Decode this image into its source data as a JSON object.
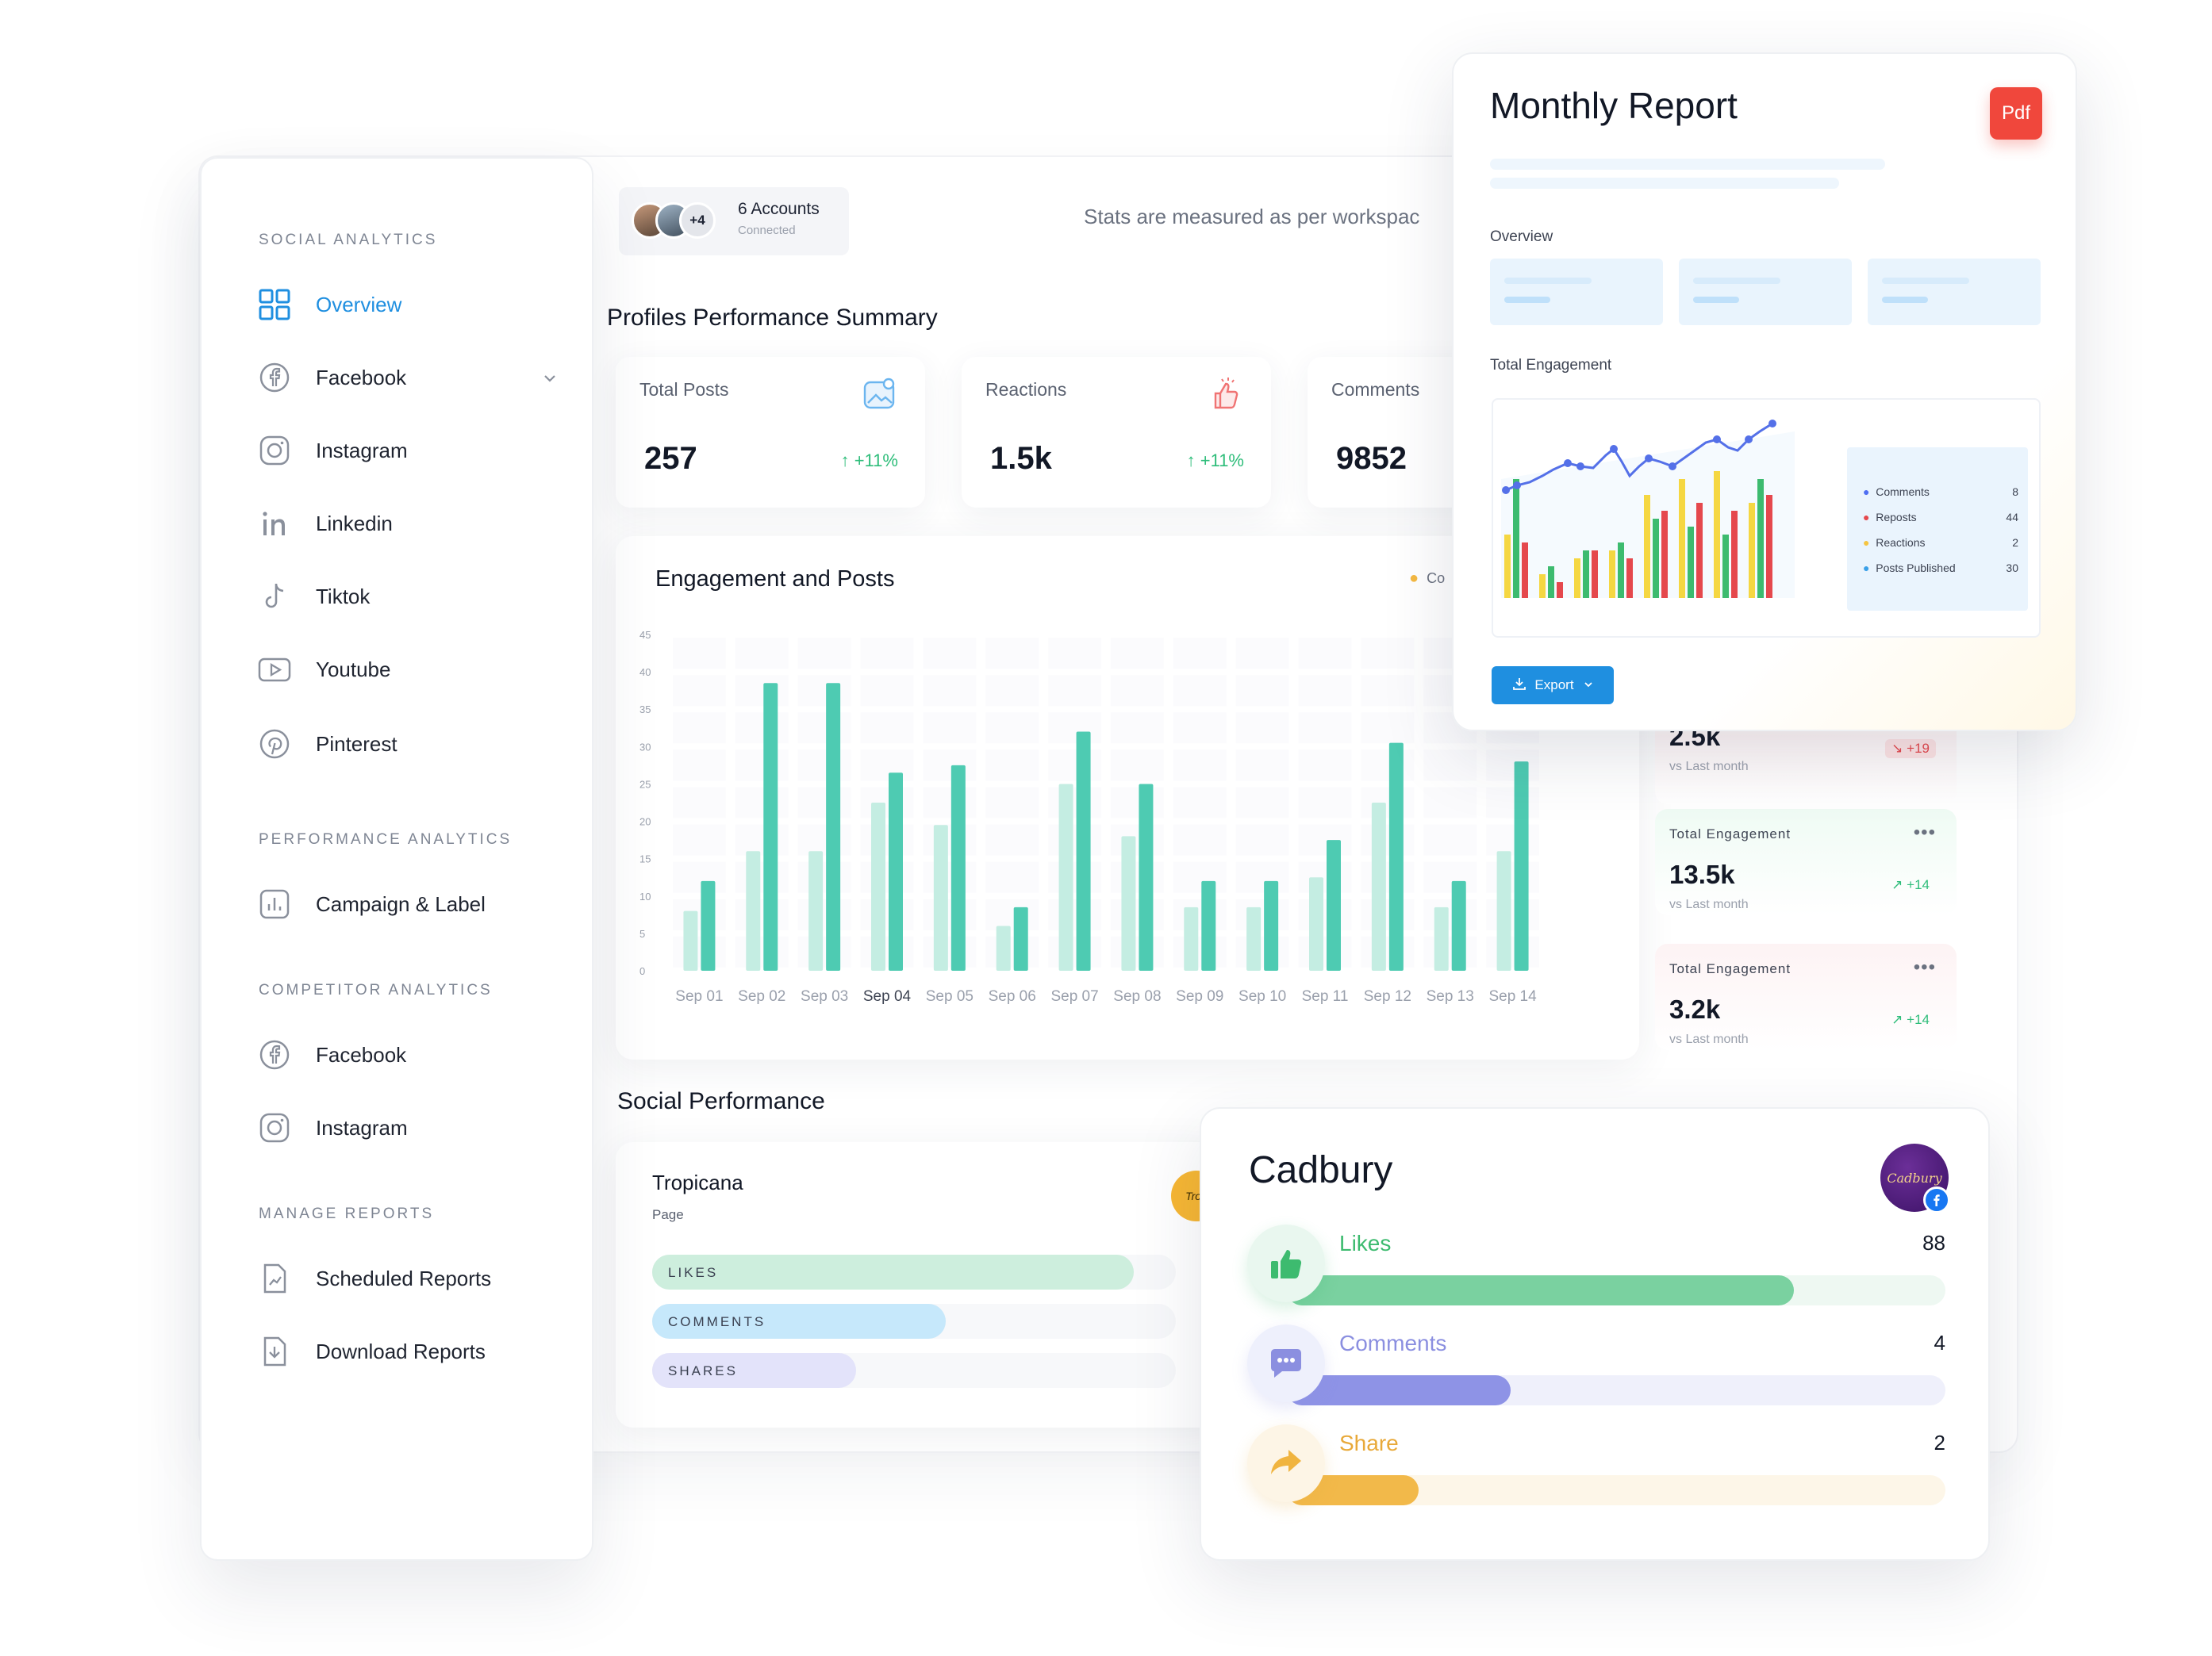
{
  "sidebar": {
    "sections": [
      {
        "title": "SOCIAL ANALYTICS",
        "items": [
          {
            "label": "Overview",
            "icon": "grid-icon",
            "active": true
          },
          {
            "label": "Facebook",
            "icon": "facebook-icon",
            "expandable": true
          },
          {
            "label": "Instagram",
            "icon": "instagram-icon"
          },
          {
            "label": "Linkedin",
            "icon": "linkedin-icon"
          },
          {
            "label": "Tiktok",
            "icon": "tiktok-icon"
          },
          {
            "label": "Youtube",
            "icon": "youtube-icon"
          },
          {
            "label": "Pinterest",
            "icon": "pinterest-icon"
          }
        ]
      },
      {
        "title": "PERFORMANCE ANALYTICS",
        "items": [
          {
            "label": "Campaign & Label",
            "icon": "bar-chart-icon"
          }
        ]
      },
      {
        "title": "COMPETITOR ANALYTICS",
        "items": [
          {
            "label": "Facebook",
            "icon": "facebook-icon"
          },
          {
            "label": "Instagram",
            "icon": "instagram-icon"
          }
        ]
      },
      {
        "title": "MANAGE REPORTS",
        "items": [
          {
            "label": "Scheduled Reports",
            "icon": "scheduled-report-icon"
          },
          {
            "label": "Download Reports",
            "icon": "download-report-icon"
          }
        ]
      }
    ]
  },
  "header": {
    "accounts": {
      "extra_count": "+4",
      "title": "6 Accounts",
      "subtitle": "Connected"
    },
    "stats_note": "Stats are measured as per workspac"
  },
  "summary": {
    "title": "Profiles Performance Summary",
    "cards": [
      {
        "label": "Total Posts",
        "value": "257",
        "change": "+11%",
        "icon": "image-icon"
      },
      {
        "label": "Reactions",
        "value": "1.5k",
        "change": "+11%",
        "icon": "thumbs-up-icon"
      },
      {
        "label": "Comments",
        "value": "9852"
      }
    ]
  },
  "chart_data": {
    "type": "bar",
    "title": "Engagement and Posts",
    "legend_visible": "Co",
    "categories": [
      "Sep 01",
      "Sep 02",
      "Sep 03",
      "Sep 04",
      "Sep 05",
      "Sep 06",
      "Sep 07",
      "Sep 08",
      "Sep 09",
      "Sep 10",
      "Sep 11",
      "Sep 12",
      "Sep 13",
      "Sep 14"
    ],
    "highlighted_category": "Sep 04",
    "series": [
      {
        "values": [
          8,
          16,
          16,
          22.5,
          19.5,
          6,
          25,
          18,
          8.5,
          8.5,
          12.5,
          22.5,
          8.5,
          16
        ],
        "color": "#c4ede2"
      },
      {
        "values": [
          12,
          38.5,
          38.5,
          26.5,
          27.5,
          8.5,
          32,
          25,
          12,
          12,
          17.5,
          30.5,
          12,
          28
        ],
        "color": "#4ecbb2"
      }
    ],
    "yticks": [
      0,
      5,
      10,
      15,
      20,
      25,
      30,
      35,
      40,
      45
    ],
    "ylim": [
      0,
      45
    ]
  },
  "mini_cards": [
    {
      "title": "",
      "value": "2.5k",
      "sub": "vs Last month",
      "delta": "+19",
      "trend": "down",
      "color": "#fdf1f2",
      "delta_color": "#e5484d"
    },
    {
      "title": "Total Engagement",
      "value": "13.5k",
      "sub": "vs Last month",
      "delta": "+14",
      "trend": "up",
      "color": "#effbf4",
      "delta_color": "#2ebd7a"
    },
    {
      "title": "Total Engagement",
      "value": "3.2k",
      "sub": "vs Last month",
      "delta": "+14",
      "trend": "up",
      "color": "#fdf3f4",
      "delta_color": "#2ebd7a"
    }
  ],
  "social": {
    "title": "Social Performance",
    "tropicana": {
      "name": "Tropicana",
      "type": "Page",
      "logo_text": "Trop",
      "bars": [
        {
          "label": "LIKES",
          "fraction": 0.92,
          "color": "#cdeedd"
        },
        {
          "label": "COMMENTS",
          "fraction": 0.56,
          "color": "#c6e8fb"
        },
        {
          "label": "SHARES",
          "fraction": 0.39,
          "color": "#e3e3fa"
        }
      ]
    }
  },
  "report": {
    "title": "Monthly Report",
    "pdf_label": "Pdf",
    "overview_label": "Overview",
    "engagement_label": "Total Engagement",
    "legend": [
      {
        "label": "Comments",
        "value": "8",
        "color": "#4e6ef2"
      },
      {
        "label": "Reposts",
        "value": "44",
        "color": "#e5484d"
      },
      {
        "label": "Reactions",
        "value": "2",
        "color": "#f5c542"
      },
      {
        "label": "Posts Published",
        "value": "30",
        "color": "#3aa0e8"
      }
    ],
    "export_label": "Export"
  },
  "cadbury": {
    "name": "Cadbury",
    "logo_text": "Cadbury",
    "rows": [
      {
        "label": "Likes",
        "value": "88",
        "fraction": 0.77,
        "color": "#7ad1a0",
        "track": "#eef8f2",
        "text_color": "#3dbb6f"
      },
      {
        "label": "Comments",
        "value": "4",
        "fraction": 0.34,
        "color": "#8e93e6",
        "track": "#eff0fb",
        "text_color": "#8b8fe0"
      },
      {
        "label": "Share",
        "value": "2",
        "fraction": 0.2,
        "color": "#f2b94a",
        "track": "#fdf6e8",
        "text_color": "#e8a93a"
      }
    ]
  }
}
